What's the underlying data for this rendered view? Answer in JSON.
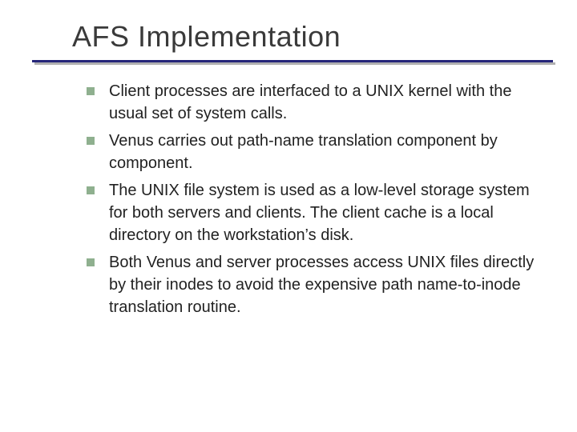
{
  "title": "AFS Implementation",
  "title_color": "#3a3a3a",
  "rule_color": "#26267a",
  "rule_shadow_color": "#b0b0b0",
  "bullet_color": "#8fb08f",
  "body_color": "#222222",
  "background_color": "#ffffff",
  "title_fontsize": 36,
  "body_fontsize": 20,
  "bullets": [
    "Client processes are interfaced to a UNIX kernel with the usual set of system calls.",
    "Venus carries out path-name translation component by component.",
    "The UNIX file system is used as a low-level storage system for both servers and clients.  The client cache is a local directory on the workstation’s disk.",
    "Both Venus and server processes access UNIX files directly by their inodes to avoid the expensive path name-to-inode translation routine."
  ]
}
